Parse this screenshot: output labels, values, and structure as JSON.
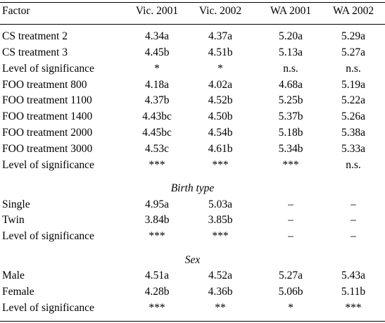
{
  "header": {
    "factor": "Factor",
    "cols": [
      "Vic. 2001",
      "Vic. 2002",
      "WA 2001",
      "WA 2002"
    ]
  },
  "groups": [
    {
      "rows": [
        [
          "CS treatment 2",
          "4.34a",
          "4.37a",
          "5.20a",
          "5.29a"
        ],
        [
          "CS treatment 3",
          "4.45b",
          "4.51b",
          "5.13a",
          "5.27a"
        ],
        [
          "Level of significance",
          "*",
          "*",
          "n.s.",
          "n.s."
        ],
        [
          "FOO treatment 800",
          "4.18a",
          "4.02a",
          "4.68a",
          "5.19a"
        ],
        [
          "FOO treatment 1100",
          "4.37b",
          "4.52b",
          "5.25b",
          "5.22a"
        ],
        [
          "FOO treatment 1400",
          "4.43bc",
          "4.50b",
          "5.37b",
          "5.26a"
        ],
        [
          "FOO treatment 2000",
          "4.45bc",
          "4.54b",
          "5.18b",
          "5.38a"
        ],
        [
          "FOO treatment 3000",
          "4.53c",
          "4.61b",
          "5.34b",
          "5.33a"
        ],
        [
          "Level of significance",
          "***",
          "***",
          "***",
          "n.s."
        ]
      ]
    },
    {
      "title": "Birth type",
      "rows": [
        [
          "Single",
          "4.95a",
          "5.03a",
          "–",
          "–"
        ],
        [
          "Twin",
          "3.84b",
          "3.85b",
          "–",
          "–"
        ],
        [
          "Level of significance",
          "***",
          "***",
          "–",
          "–"
        ]
      ]
    },
    {
      "title": "Sex",
      "rows": [
        [
          "Male",
          "4.51a",
          "4.52a",
          "5.27a",
          "5.43a"
        ],
        [
          "Female",
          "4.28b",
          "4.36b",
          "5.06b",
          "5.11b"
        ],
        [
          "Level of significance",
          "***",
          "**",
          "*",
          "***"
        ]
      ]
    }
  ]
}
